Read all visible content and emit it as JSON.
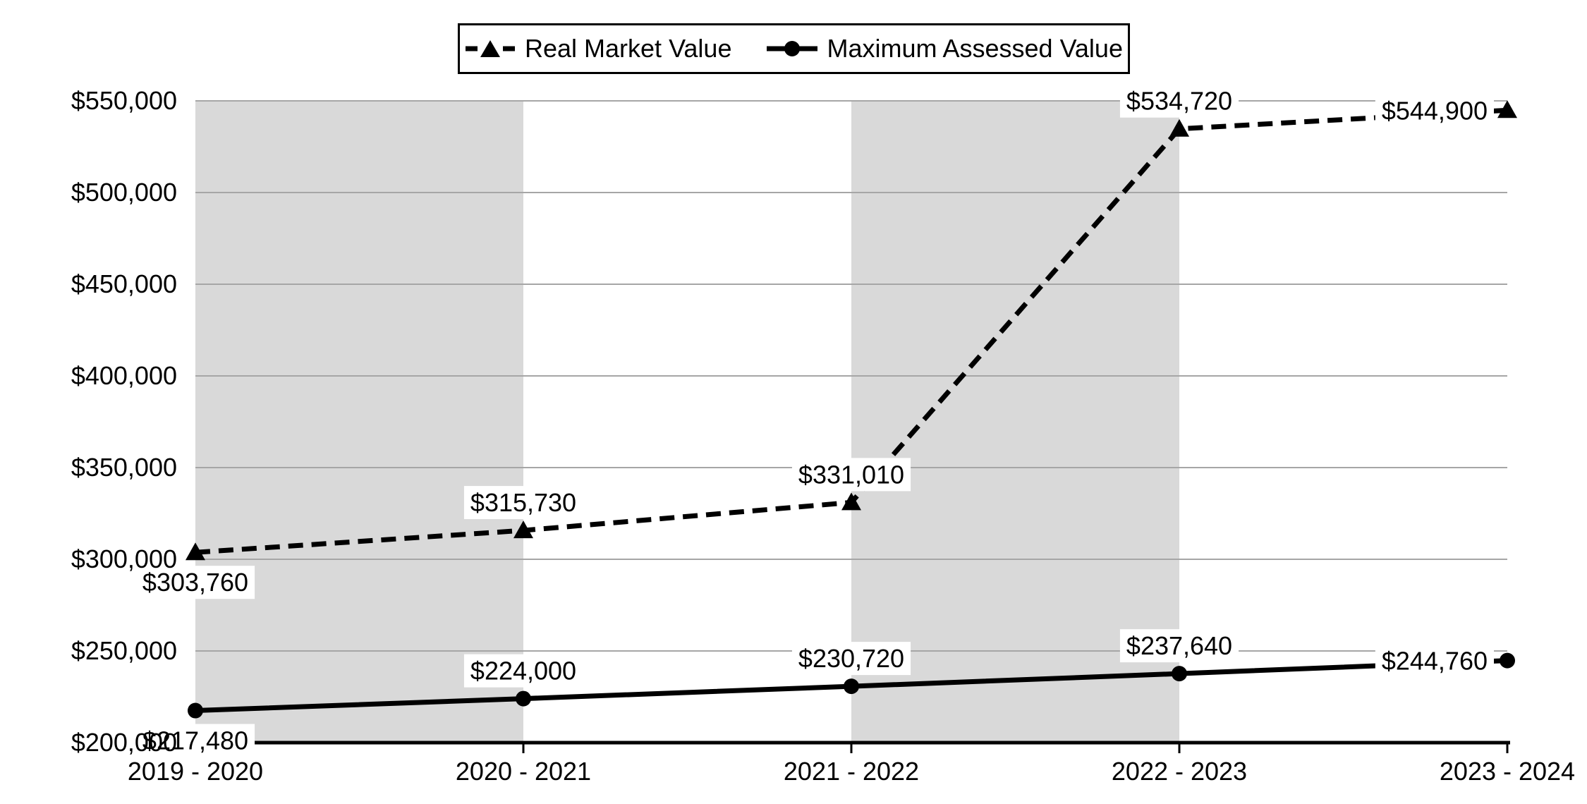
{
  "chart_data": {
    "type": "line",
    "title": "",
    "xlabel": "",
    "ylabel": "",
    "categories": [
      "2019 - 2020",
      "2020 - 2021",
      "2021 - 2022",
      "2022 - 2023",
      "2023 - 2024"
    ],
    "series": [
      {
        "name": "Real Market Value",
        "marker": "triangle",
        "line_style": "dashed",
        "values": [
          303760,
          315730,
          331010,
          534720,
          544900
        ],
        "labels": [
          "$303,760",
          "$315,730",
          "$331,010",
          "$534,720",
          "$544,900"
        ],
        "label_pos": [
          "below",
          "above",
          "above",
          "above",
          "left"
        ]
      },
      {
        "name": "Maximum Assessed Value",
        "marker": "circle",
        "line_style": "solid",
        "values": [
          217480,
          224000,
          230720,
          237640,
          244760
        ],
        "labels": [
          "$217,480",
          "$224,000",
          "$230,720",
          "$237,640",
          "$244,760"
        ],
        "label_pos": [
          "below",
          "above",
          "above",
          "above",
          "left"
        ]
      }
    ],
    "y_axis": {
      "min": 200000,
      "max": 550000,
      "step": 50000,
      "tick_labels": [
        "$200,000",
        "$250,000",
        "$300,000",
        "$350,000",
        "$400,000",
        "$450,000",
        "$500,000",
        "$550,000"
      ]
    },
    "legend_position": "top-center",
    "grid": true,
    "plot_bands": {
      "spans": [
        [
          0,
          1
        ],
        [
          2,
          3
        ]
      ]
    },
    "colors": {
      "series": "#000000",
      "gridline": "#a6a6a6",
      "band": "#d9d9d9",
      "axis": "#000000",
      "label_bg": "#ffffff",
      "background": "#ffffff",
      "text": "#000000"
    }
  }
}
